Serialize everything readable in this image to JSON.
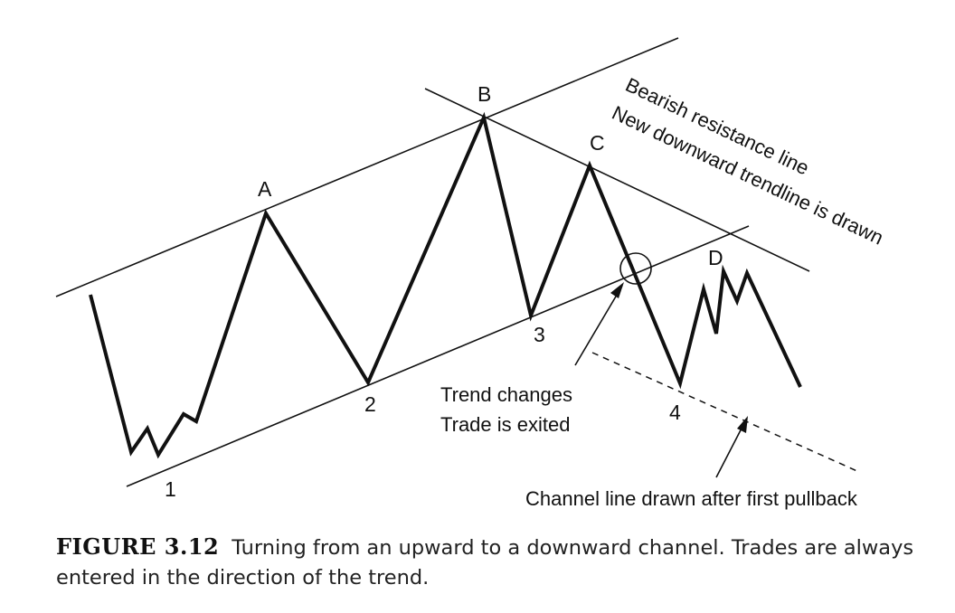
{
  "labels": {
    "A": "A",
    "B": "B",
    "C": "C",
    "D": "D",
    "p1": "1",
    "p2": "2",
    "p3": "3",
    "p4": "4"
  },
  "annotations": {
    "bearish_line_1": "Bearish resistance line",
    "bearish_line_2": "New downward trendline is drawn",
    "trend_change_1": "Trend changes",
    "trend_change_2": "Trade is exited",
    "channel_line": "Channel line drawn after first pullback"
  },
  "caption": {
    "figure_label": "FIGURE 3.12",
    "text": "Turning from an upward to a downward channel. Trades are always entered in the direction of the trend."
  }
}
